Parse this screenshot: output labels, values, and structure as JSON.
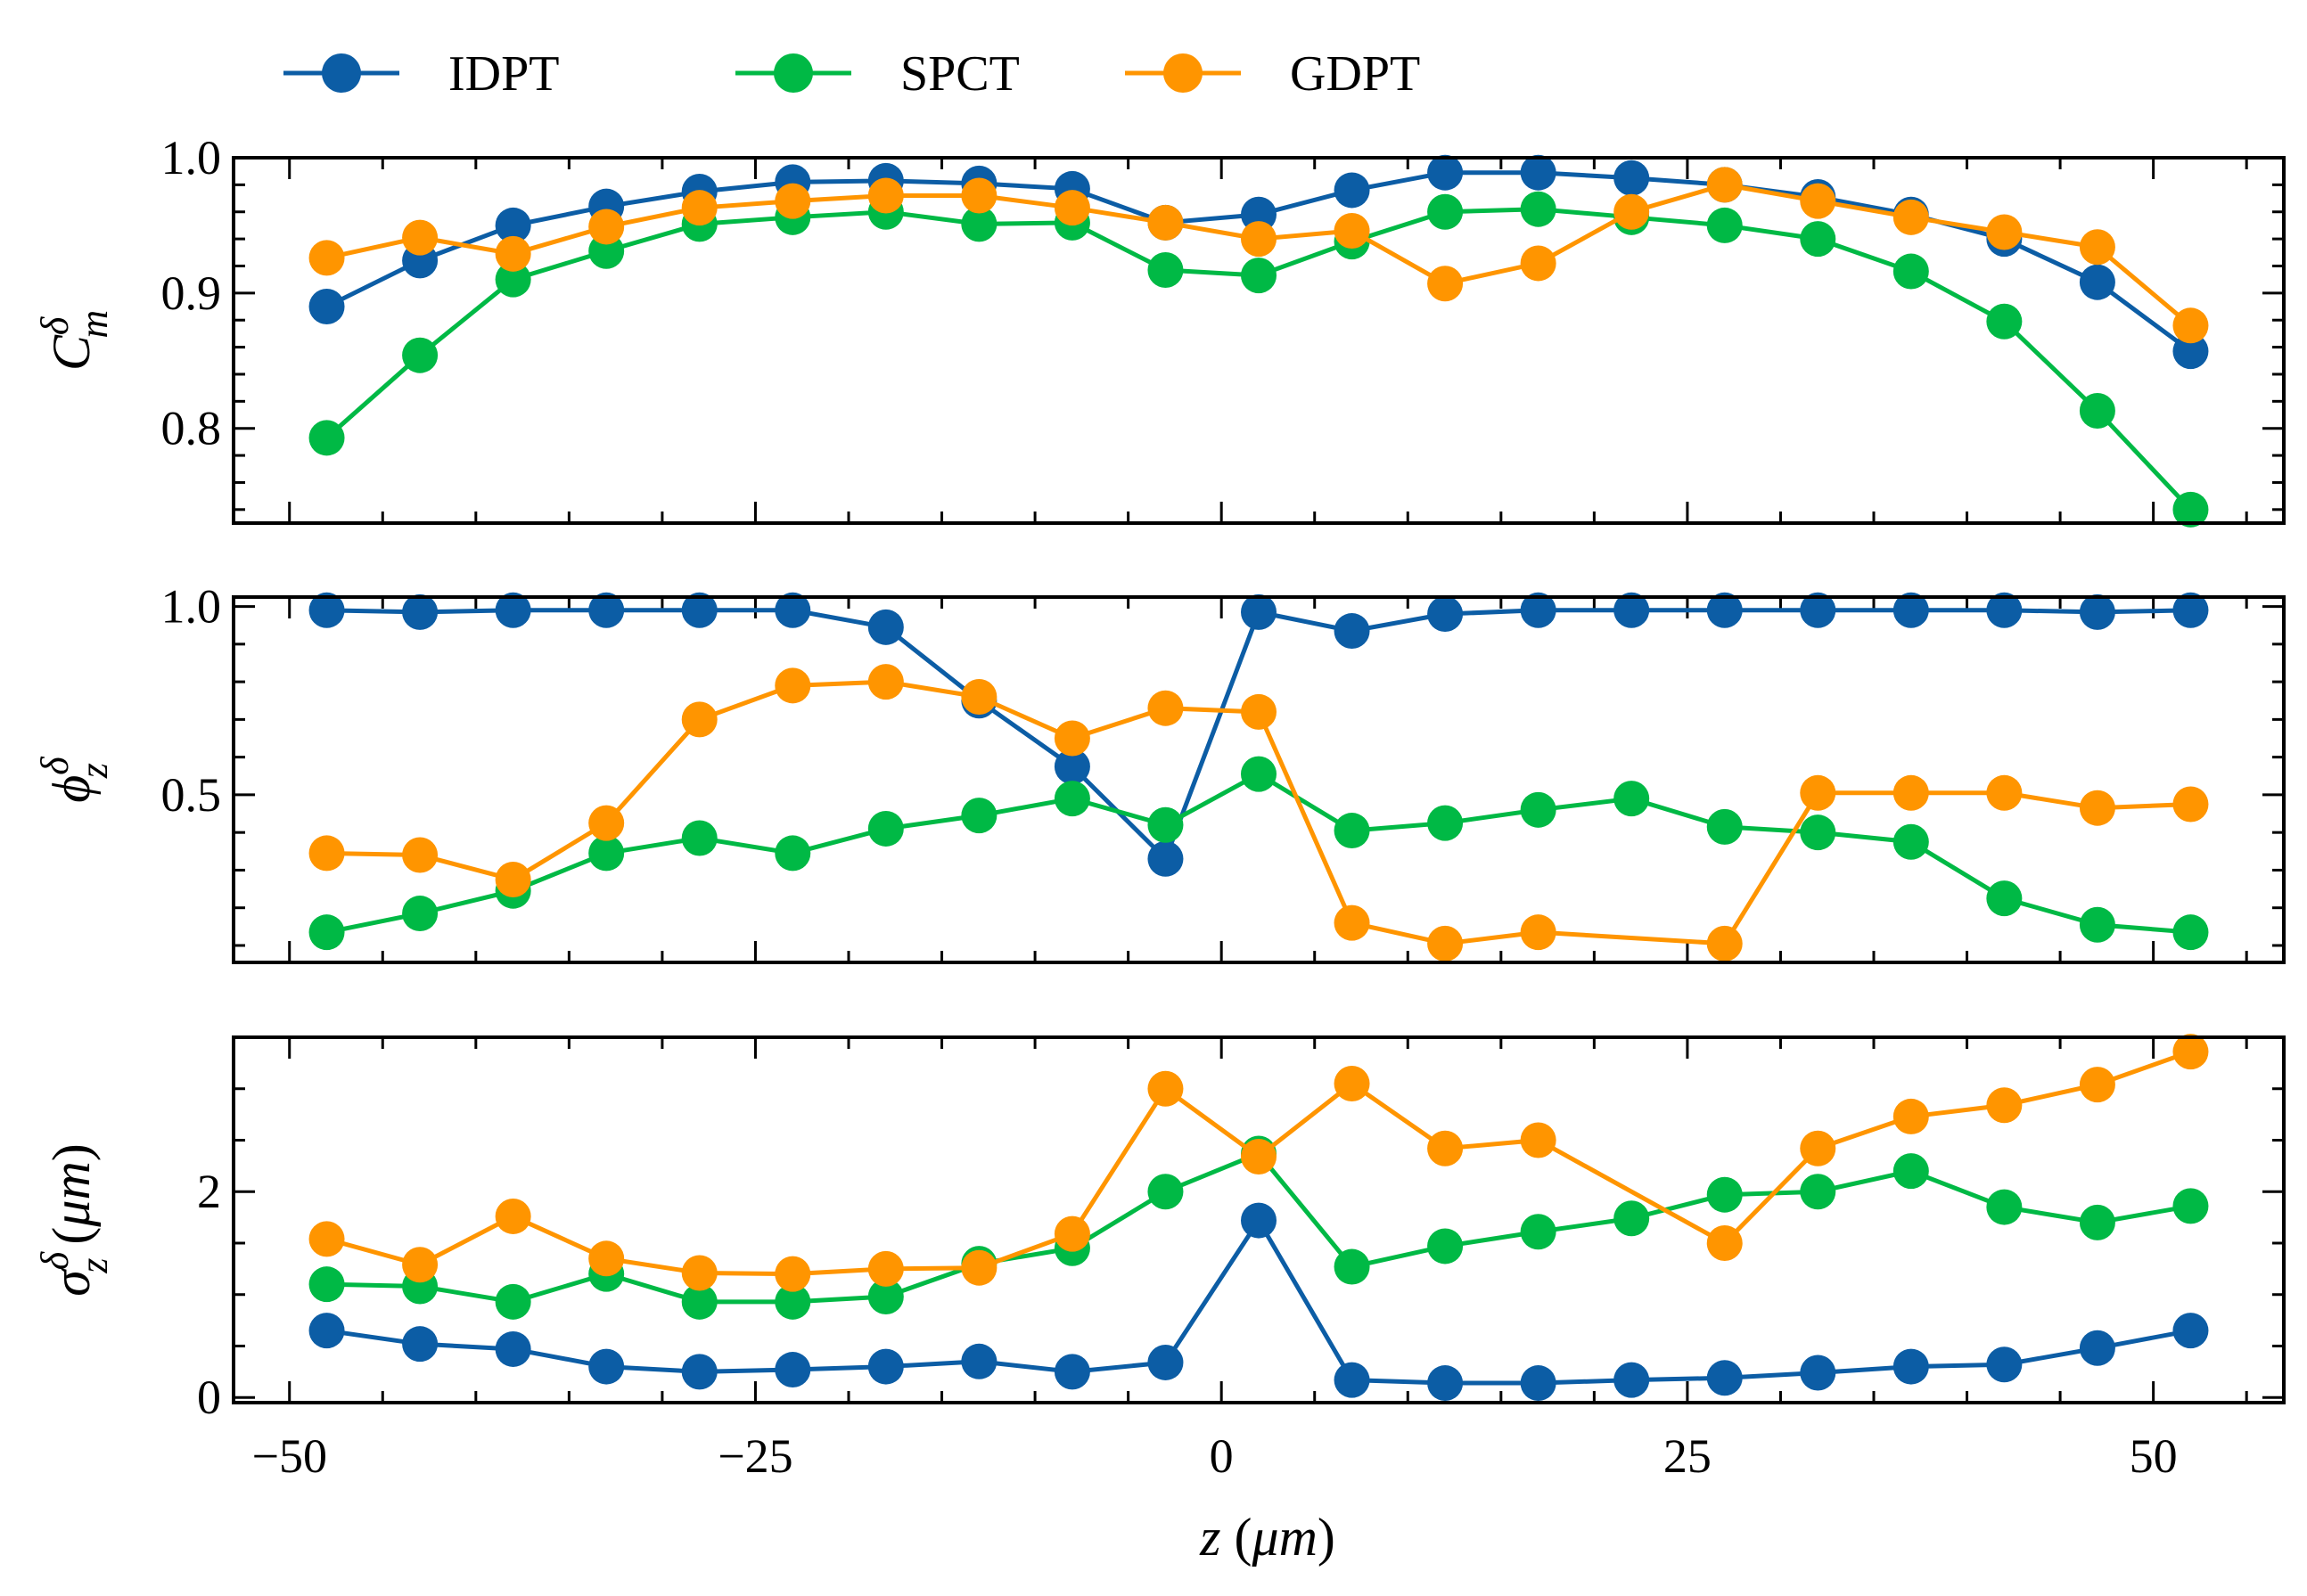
{
  "chart_data": {
    "type": "line",
    "colors": {
      "IDPT": "#0C5DA5",
      "SPCT": "#00B945",
      "GDPT": "#FF9500"
    },
    "legend": {
      "position": "top-left",
      "entries": [
        "IDPT",
        "SPCT",
        "GDPT"
      ]
    },
    "x": [
      -48,
      -43,
      -38,
      -33,
      -28,
      -23,
      -18,
      -13,
      -8,
      -3,
      2,
      7,
      12,
      17,
      22,
      27,
      32,
      37,
      42,
      47,
      52
    ],
    "xlabel": {
      "text": "z",
      "unit": "μm"
    },
    "xlim": [
      -53,
      57
    ],
    "xticks": [
      -50,
      -25,
      0,
      25,
      50
    ],
    "xtick_labels": [
      "−50",
      "−25",
      "0",
      "25",
      "50"
    ],
    "grid": false,
    "panels": [
      {
        "id": "cm",
        "ylabel": {
          "symbol": "C",
          "sup": "δ",
          "sub": "m"
        },
        "ylim": [
          0.73,
          1.0
        ],
        "yticks": [
          0.8,
          0.9,
          1.0
        ],
        "ytick_labels": [
          "0.8",
          "0.9",
          "1.0"
        ],
        "series": [
          {
            "name": "IDPT",
            "values": [
              0.89,
              0.924,
              0.95,
              0.964,
              0.975,
              0.982,
              0.983,
              0.981,
              0.977,
              0.952,
              0.958,
              0.976,
              0.989,
              0.989,
              0.985,
              0.98,
              0.971,
              0.958,
              0.94,
              0.908,
              0.857
            ]
          },
          {
            "name": "SPCT",
            "values": [
              0.793,
              0.854,
              0.91,
              0.931,
              0.951,
              0.956,
              0.96,
              0.951,
              0.952,
              0.917,
              0.913,
              0.938,
              0.96,
              0.962,
              0.956,
              0.95,
              0.94,
              0.916,
              0.879,
              0.813,
              0.74
            ]
          },
          {
            "name": "GDPT",
            "values": [
              0.926,
              0.941,
              0.929,
              0.949,
              0.963,
              0.968,
              0.972,
              0.972,
              0.963,
              0.952,
              0.94,
              0.946,
              0.907,
              0.922,
              0.96,
              0.98,
              0.968,
              0.956,
              0.945,
              0.934,
              0.876
            ]
          }
        ]
      },
      {
        "id": "phi",
        "ylabel": {
          "symbol": "ϕ",
          "sup": "δ",
          "sub": "z"
        },
        "ylim": [
          0.055,
          1.025
        ],
        "yticks": [
          0.5,
          1.0
        ],
        "ytick_labels": [
          "0.5",
          "1.0"
        ],
        "series": [
          {
            "name": "IDPT",
            "values": [
              0.99,
              0.985,
              0.99,
              0.99,
              0.99,
              0.99,
              0.945,
              0.75,
              0.575,
              0.33,
              0.985,
              0.935,
              0.98,
              0.99,
              0.99,
              0.99,
              0.99,
              0.99,
              0.99,
              0.985,
              0.99
            ]
          },
          {
            "name": "SPCT",
            "values": [
              0.135,
              0.185,
              0.245,
              0.345,
              0.385,
              0.345,
              0.41,
              0.445,
              0.49,
              0.42,
              0.555,
              0.405,
              0.425,
              0.46,
              0.49,
              0.415,
              0.4,
              0.375,
              0.225,
              0.155,
              0.135
            ]
          },
          {
            "name": "GDPT",
            "values": [
              0.345,
              0.34,
              0.275,
              0.425,
              0.7,
              0.79,
              0.8,
              0.76,
              0.65,
              0.73,
              0.72,
              0.16,
              0.105,
              0.135,
              null,
              0.105,
              0.505,
              0.505,
              0.505,
              0.465,
              0.475
            ]
          }
        ]
      },
      {
        "id": "sigma",
        "ylabel": {
          "symbol": "σ",
          "sup": "δ",
          "sub": "z",
          "unit": "μm"
        },
        "ylim": [
          -0.05,
          3.5
        ],
        "yticks": [
          0,
          2
        ],
        "ytick_labels": [
          "0",
          "2"
        ],
        "series": [
          {
            "name": "IDPT",
            "values": [
              0.65,
              0.52,
              0.47,
              0.3,
              0.25,
              0.27,
              0.3,
              0.35,
              0.25,
              0.34,
              1.72,
              0.17,
              0.14,
              0.14,
              0.17,
              0.19,
              0.24,
              0.3,
              0.32,
              0.48,
              0.65
            ]
          },
          {
            "name": "SPCT",
            "values": [
              1.1,
              1.08,
              0.93,
              1.2,
              0.93,
              0.93,
              0.98,
              1.3,
              1.45,
              2.0,
              2.37,
              1.27,
              1.47,
              1.61,
              1.74,
              1.97,
              2.0,
              2.2,
              1.85,
              1.7,
              1.86
            ]
          },
          {
            "name": "GDPT",
            "values": [
              1.54,
              1.29,
              1.76,
              1.35,
              1.21,
              1.2,
              1.25,
              1.26,
              1.59,
              3.0,
              2.34,
              3.05,
              2.42,
              2.5,
              null,
              1.5,
              2.42,
              2.73,
              2.84,
              3.04,
              3.36
            ]
          }
        ]
      }
    ]
  }
}
